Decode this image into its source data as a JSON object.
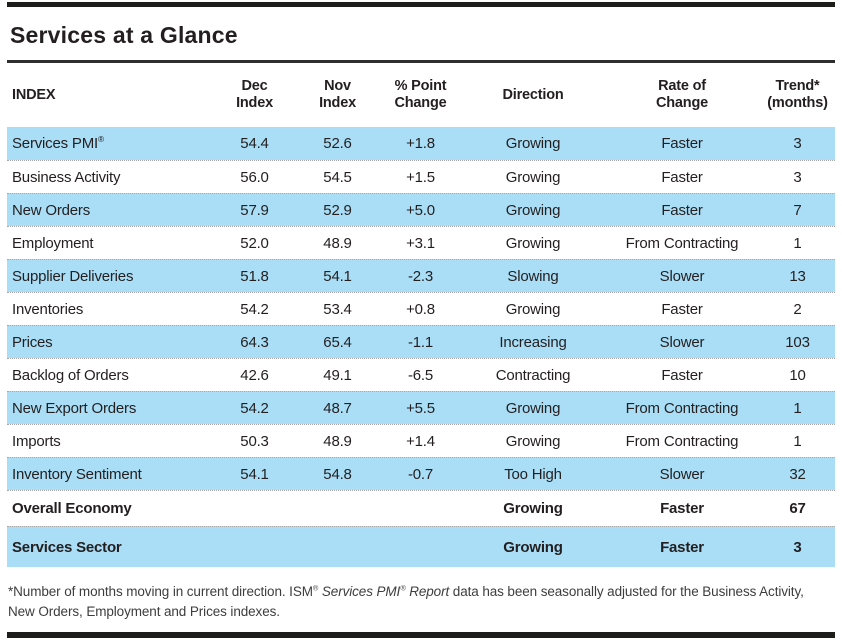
{
  "title": "Services at a Glance",
  "colors": {
    "row_highlight": "#a9def6",
    "bar": "#1d1d1b",
    "text": "#231f20"
  },
  "table": {
    "headers": [
      {
        "line1": "INDEX",
        "line2": ""
      },
      {
        "line1": "Dec",
        "line2": "Index"
      },
      {
        "line1": "Nov",
        "line2": "Index"
      },
      {
        "line1": "% Point",
        "line2": "Change"
      },
      {
        "line1": "Direction",
        "line2": ""
      },
      {
        "line1": "Rate of",
        "line2": "Change"
      },
      {
        "line1": "Trend*",
        "line2": "(months)"
      }
    ],
    "rows": [
      {
        "index": "Services PMI",
        "index_sup": "®",
        "dec": "54.4",
        "nov": "52.6",
        "change": "+1.8",
        "direction": "Growing",
        "rate": "Faster",
        "trend": "3"
      },
      {
        "index": "Business Activity",
        "dec": "56.0",
        "nov": "54.5",
        "change": "+1.5",
        "direction": "Growing",
        "rate": "Faster",
        "trend": "3"
      },
      {
        "index": "New Orders",
        "dec": "57.9",
        "nov": "52.9",
        "change": "+5.0",
        "direction": "Growing",
        "rate": "Faster",
        "trend": "7"
      },
      {
        "index": "Employment",
        "dec": "52.0",
        "nov": "48.9",
        "change": "+3.1",
        "direction": "Growing",
        "rate": "From Contracting",
        "trend": "1"
      },
      {
        "index": "Supplier Deliveries",
        "dec": "51.8",
        "nov": "54.1",
        "change": "-2.3",
        "direction": "Slowing",
        "rate": "Slower",
        "trend": "13"
      },
      {
        "index": "Inventories",
        "dec": "54.2",
        "nov": "53.4",
        "change": "+0.8",
        "direction": "Growing",
        "rate": "Faster",
        "trend": "2"
      },
      {
        "index": "Prices",
        "dec": "64.3",
        "nov": "65.4",
        "change": "-1.1",
        "direction": "Increasing",
        "rate": "Slower",
        "trend": "103"
      },
      {
        "index": "Backlog of Orders",
        "dec": "42.6",
        "nov": "49.1",
        "change": "-6.5",
        "direction": "Contracting",
        "rate": "Faster",
        "trend": "10"
      },
      {
        "index": "New Export Orders",
        "dec": "54.2",
        "nov": "48.7",
        "change": "+5.5",
        "direction": "Growing",
        "rate": "From Contracting",
        "trend": "1"
      },
      {
        "index": "Imports",
        "dec": "50.3",
        "nov": "48.9",
        "change": "+1.4",
        "direction": "Growing",
        "rate": "From Contracting",
        "trend": "1"
      },
      {
        "index": "Inventory Sentiment",
        "dec": "54.1",
        "nov": "54.8",
        "change": "-0.7",
        "direction": "Too High",
        "rate": "Slower",
        "trend": "32"
      },
      {
        "index": "Overall Economy",
        "dec": "",
        "nov": "",
        "change": "",
        "direction": "Growing",
        "rate": "Faster",
        "trend": "67"
      },
      {
        "index": "Services Sector",
        "dec": "",
        "nov": "",
        "change": "",
        "direction": "Growing",
        "rate": "Faster",
        "trend": "3"
      }
    ]
  },
  "footnote": {
    "part1": "*Number of months moving in current direction. ISM",
    "sup1": "®",
    "italic1": " Services PMI",
    "sup2": "®",
    "italic2": " Report",
    "part2": " data has been seasonally adjusted for the Business Activity,",
    "part3": "New Orders, Employment and Prices indexes."
  }
}
